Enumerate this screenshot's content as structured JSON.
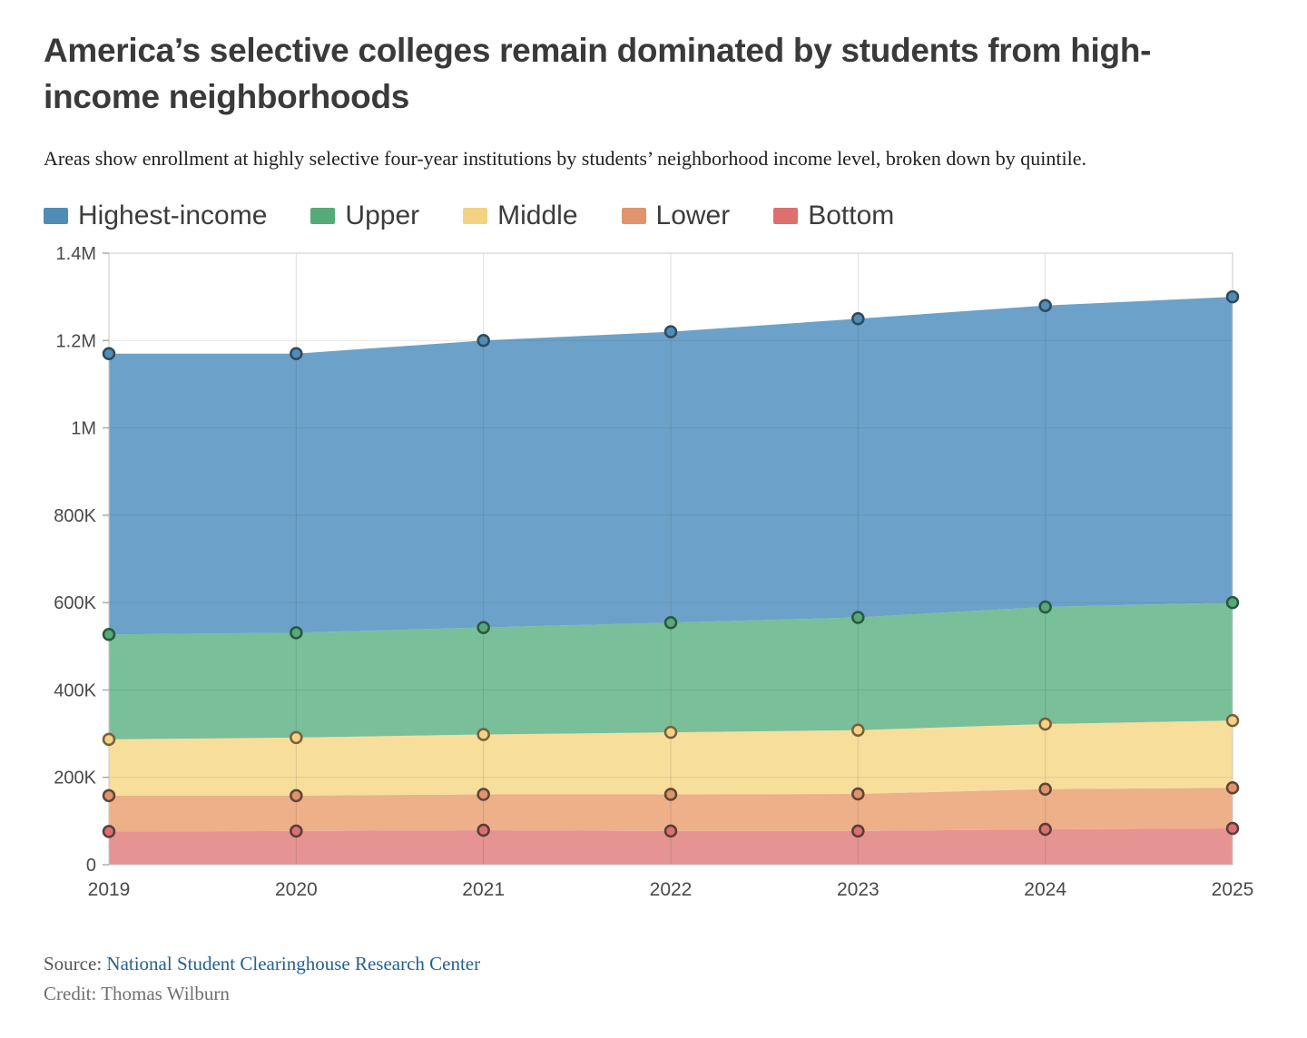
{
  "header": {
    "title": "America’s selective colleges remain dominated by students from high-income neighborhoods",
    "subtitle": "Areas show enrollment at highly selective four-year institutions by students’ neighborhood income level, broken down by quintile."
  },
  "chart_data": {
    "type": "area",
    "stacked": true,
    "x": [
      "2019",
      "2020",
      "2021",
      "2022",
      "2023",
      "2024",
      "2025"
    ],
    "ylim": [
      0,
      1400000
    ],
    "y_ticks": [
      {
        "label": "0",
        "value": 0
      },
      {
        "label": "200K",
        "value": 200000
      },
      {
        "label": "400K",
        "value": 400000
      },
      {
        "label": "600K",
        "value": 600000
      },
      {
        "label": "800K",
        "value": 800000
      },
      {
        "label": "1M",
        "value": 1000000
      },
      {
        "label": "1.2M",
        "value": 1200000
      },
      {
        "label": "1.4M",
        "value": 1400000
      }
    ],
    "grid": true,
    "legend_position": "top",
    "stack_order": "last listed series is at the bottom of the stack",
    "series": [
      {
        "name": "Highest-income",
        "color": "#4f8db6",
        "area_color": "#5f9ac4",
        "dot_stroke": "#2d4a5e",
        "values": [
          643000,
          639000,
          657000,
          666000,
          684000,
          690000,
          700000
        ]
      },
      {
        "name": "Upper",
        "color": "#55aa78",
        "area_color": "#6eba90",
        "dot_stroke": "#2c5640",
        "values": [
          240000,
          240000,
          245000,
          251000,
          258000,
          268000,
          270000
        ]
      },
      {
        "name": "Middle",
        "color": "#f3d383",
        "area_color": "#f7db92",
        "dot_stroke": "#75603c",
        "values": [
          129000,
          133000,
          137000,
          142000,
          146000,
          149000,
          154000
        ]
      },
      {
        "name": "Lower",
        "color": "#e0946b",
        "area_color": "#eca97f",
        "dot_stroke": "#5f4538",
        "values": [
          82000,
          81000,
          82000,
          84000,
          85000,
          92000,
          93000
        ]
      },
      {
        "name": "Bottom",
        "color": "#dd6f6f",
        "area_color": "#e38a8a",
        "dot_stroke": "#593c3c",
        "values": [
          76000,
          77000,
          79000,
          77000,
          77000,
          81000,
          83000
        ]
      }
    ]
  },
  "footer": {
    "source_label": "Source:",
    "source_link_text": "National Student Clearinghouse Research Center",
    "credit_label": "Credit:",
    "credit_text": "Thomas Wilburn"
  }
}
